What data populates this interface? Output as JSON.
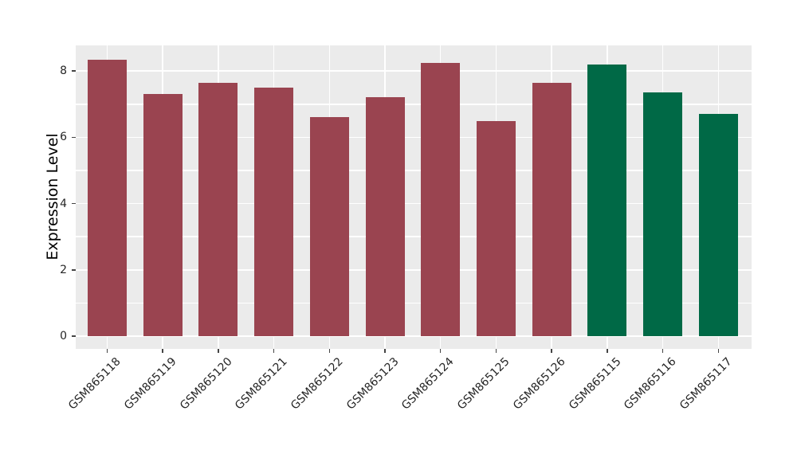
{
  "chart_data": {
    "type": "bar",
    "title": "",
    "xlabel": "",
    "ylabel": "Expression Level",
    "categories": [
      "GSM865118",
      "GSM865119",
      "GSM865120",
      "GSM865121",
      "GSM865122",
      "GSM865123",
      "GSM865124",
      "GSM865125",
      "GSM865126",
      "GSM865115",
      "GSM865116",
      "GSM865117"
    ],
    "values": [
      8.35,
      7.3,
      7.65,
      7.5,
      6.6,
      7.2,
      8.25,
      6.5,
      7.65,
      8.2,
      7.35,
      6.7
    ],
    "bar_colors": [
      "#9A4450",
      "#9A4450",
      "#9A4450",
      "#9A4450",
      "#9A4450",
      "#9A4450",
      "#9A4450",
      "#9A4450",
      "#9A4450",
      "#006946",
      "#006946",
      "#006946"
    ],
    "group_colors": {
      "maroon_group": "#9A4450",
      "green_group": "#006946"
    },
    "yticks": [
      0,
      2,
      4,
      6,
      8
    ],
    "ylim": [
      -0.44,
      8.77
    ],
    "grid": {
      "on": true,
      "horizontal_every": 1,
      "vertical": "at bar centers",
      "color": "#FFFFFF"
    },
    "legend": "none",
    "plot_background": "#EBEBEB",
    "figure_background": "#FFFFFF"
  }
}
